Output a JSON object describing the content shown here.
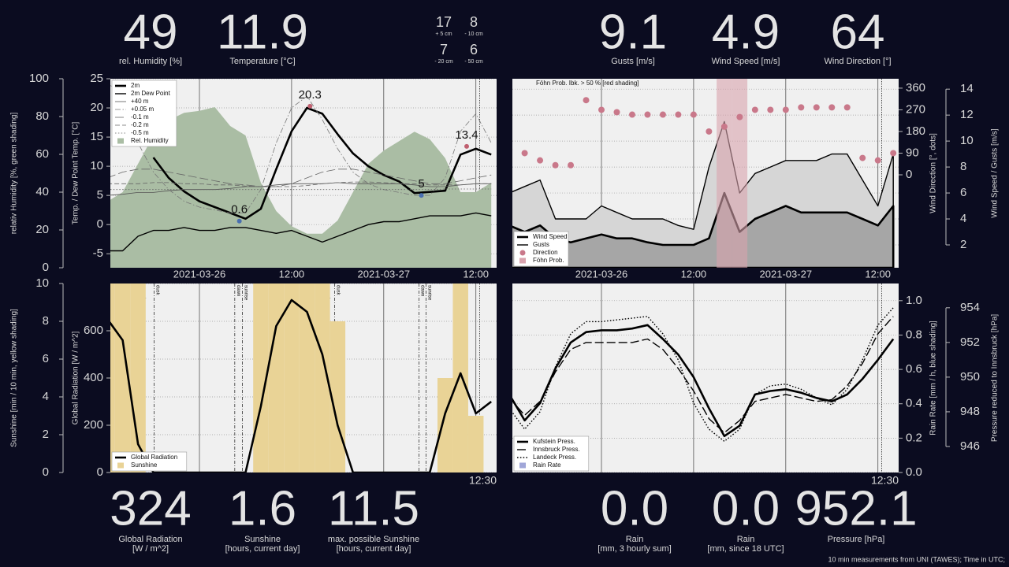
{
  "readouts_top": [
    {
      "value": 49,
      "label": [
        "rel. Humidity [%]"
      ]
    },
    {
      "value": 11.9,
      "label": [
        "Temperature [°C]"
      ]
    },
    {
      "value": 9.1,
      "label": [
        "Gusts [m/s]"
      ]
    },
    {
      "value": 4.9,
      "label": [
        "Wind Speed [m/s]"
      ]
    },
    {
      "value": 64,
      "label": [
        "Wind Direction [°]"
      ]
    }
  ],
  "soil_readouts": [
    {
      "value": 17,
      "label": "+ 5 cm"
    },
    {
      "value": 8,
      "label": "- 10 cm"
    },
    {
      "value": 7,
      "label": "- 20 cm"
    },
    {
      "value": 6,
      "label": "- 50 cm"
    }
  ],
  "readouts_bottom": [
    {
      "value": 324,
      "label": [
        "Global Radiation",
        "[W / m^2]"
      ]
    },
    {
      "value": 1.6,
      "label": [
        "Sunshine",
        "[hours, current day]"
      ]
    },
    {
      "value": 11.5,
      "label": [
        "max. possible Sunshine",
        "[hours, current day]"
      ]
    },
    {
      "value": 0,
      "value_label": "0.0",
      "label": [
        "Rain",
        "[mm, 3 hourly sum]"
      ]
    },
    {
      "value": 0,
      "value_label": "0.0",
      "label": [
        "Rain",
        "[mm, since 18 UTC]"
      ]
    },
    {
      "value": 952.1,
      "label": [
        "Pressure [hPa]"
      ]
    }
  ],
  "footnote": "10 min measurements from UNI (TAWES); Time in UTC;",
  "chart_data": [
    {
      "type": "line",
      "x": [
        -12,
        -10,
        -8,
        -6,
        -4,
        -2,
        0,
        2,
        4,
        6,
        8,
        10,
        12,
        14,
        16,
        18,
        20,
        22,
        24,
        26,
        28,
        30,
        32,
        34,
        36,
        38
      ],
      "xlim": [
        -11.6,
        38.7
      ],
      "xticks": [
        {
          "value": 0,
          "label": "2021-03-26"
        },
        {
          "value": 12,
          "label": "12:00"
        },
        {
          "value": 24,
          "label": "2021-03-27"
        },
        {
          "value": 36,
          "label": "12:00"
        }
      ],
      "xtick_labels": true,
      "now_x": 36.5,
      "ylim": [
        -7.4,
        25
      ],
      "yticks": [
        -5,
        0,
        5,
        10,
        15,
        20,
        25
      ],
      "ylabel": "Temp. / Dew Point Temp. [°C]",
      "y2lim": [
        0,
        100
      ],
      "y2ticks": [
        0,
        20,
        40,
        60,
        80,
        100
      ],
      "y2label": "relativ Humidity [%, green shading]",
      "axis_side": "left",
      "grid_axis": "y",
      "legend": "upper left",
      "series": [
        {
          "name": "2m",
          "kind": "line",
          "axis": "y",
          "color": "#000000",
          "weight": "thick",
          "dash": "solid",
          "values": [
            null,
            null,
            null,
            11.5,
            8,
            5.7,
            4,
            3,
            2,
            1,
            2.7,
            9.5,
            16,
            20,
            19,
            15.5,
            12.2,
            10,
            8.5,
            7.4,
            5.4,
            5.6,
            5.8,
            12,
            13,
            12
          ]
        },
        {
          "name": "2m Dew Point",
          "kind": "line",
          "axis": "y",
          "color": "#000000",
          "weight": "medium",
          "dash": "solid",
          "values": [
            -4.5,
            -4.5,
            -2,
            -1,
            -1,
            -0.5,
            -1,
            -1,
            -0.5,
            -0.5,
            -1,
            -1.5,
            -1,
            -2,
            -3,
            -2,
            -1,
            0,
            0.5,
            0.5,
            1,
            1.5,
            1.5,
            1.5,
            2,
            1.5
          ]
        },
        {
          "name": "+40 m",
          "kind": "line",
          "axis": "y",
          "color": "#555555",
          "weight": "thin",
          "dash": "solid",
          "values": [
            5,
            5.2,
            5.5,
            5.5,
            5.8,
            6,
            6,
            6,
            6.2,
            6.5,
            6.5,
            6.8,
            7,
            7,
            7,
            7.2,
            7,
            7,
            7,
            7,
            6.8,
            6.5,
            6.5,
            6.8,
            7,
            7
          ]
        },
        {
          "name": "+0.05 m",
          "kind": "line",
          "axis": "y",
          "color": "#777777",
          "weight": "thin",
          "dash": "dashdot",
          "values": [
            25,
            20,
            14,
            9,
            6,
            4,
            3,
            2.5,
            2,
            2,
            6,
            14,
            20,
            22,
            18,
            13,
            9,
            7,
            6,
            5.5,
            5,
            5,
            8,
            16,
            19,
            14
          ]
        },
        {
          "name": "-0.1 m",
          "kind": "line",
          "axis": "y",
          "color": "#666666",
          "weight": "thin",
          "dash": "longdash",
          "values": [
            8,
            9,
            9.5,
            9.5,
            9,
            8.5,
            8,
            7.5,
            7,
            6.8,
            6.5,
            6.5,
            7,
            8,
            9,
            9.5,
            9.5,
            9,
            8.5,
            8,
            7.5,
            7,
            7,
            7.5,
            8,
            8.5
          ]
        },
        {
          "name": "-0.2 m",
          "kind": "line",
          "axis": "y",
          "color": "#666666",
          "weight": "thin",
          "dash": "dashed",
          "values": [
            7,
            7,
            7,
            7.2,
            7.2,
            7,
            7,
            6.8,
            6.8,
            6.6,
            6.5,
            6.5,
            6.5,
            6.7,
            7,
            7.2,
            7.3,
            7.3,
            7.2,
            7,
            7,
            6.8,
            6.8,
            6.8,
            7,
            7
          ]
        },
        {
          "name": "-0.5 m",
          "kind": "line",
          "axis": "y",
          "color": "#666666",
          "weight": "thin",
          "dash": "dotted",
          "values": [
            6,
            6,
            6,
            6,
            6,
            6,
            6,
            6,
            6,
            6,
            6,
            6,
            6,
            6,
            6,
            6,
            6,
            6,
            6,
            6,
            6,
            6,
            6.1,
            6.1,
            6.1,
            6.1
          ]
        },
        {
          "name": "Rel. Humidity",
          "kind": "area",
          "axis": "y2",
          "fill": "#aabda4",
          "values": [
            35,
            40,
            55,
            70,
            78,
            82,
            83,
            85,
            75,
            70,
            45,
            30,
            22,
            18,
            18,
            25,
            40,
            55,
            62,
            67,
            72,
            68,
            58,
            40,
            40,
            45
          ]
        }
      ],
      "annotations": [
        {
          "x": 5.2,
          "y": 0.6,
          "color": "#4a6fb0"
        },
        {
          "x": 14.4,
          "y": 20.3,
          "color": "#c06070"
        },
        {
          "x": 28.9,
          "y": 5,
          "color": "#4a6fb0"
        },
        {
          "x": 34.8,
          "y": 13.4,
          "color": "#c06070"
        }
      ]
    },
    {
      "type": "line",
      "x": [
        -12,
        -10,
        -8,
        -6,
        -4,
        -2,
        0,
        2,
        4,
        6,
        8,
        10,
        12,
        14,
        16,
        18,
        20,
        22,
        24,
        26,
        28,
        30,
        32,
        34,
        36,
        38
      ],
      "xlim": [
        -11.6,
        38.7
      ],
      "xticks": [
        {
          "value": 0,
          "label": "2021-03-26"
        },
        {
          "value": 12,
          "label": "12:00"
        },
        {
          "value": 24,
          "label": "2021-03-27"
        },
        {
          "value": 36,
          "label": "12:00"
        }
      ],
      "xtick_labels": true,
      "now_x": 36.5,
      "ylim": [
        -386,
        399
      ],
      "yticks": [
        0,
        90,
        180,
        270,
        360
      ],
      "ylabel": "Wind Direction [°, dots]",
      "y2lim": [
        0.24,
        14.8
      ],
      "y2ticks": [
        2,
        4,
        6,
        8,
        10,
        12,
        14
      ],
      "y2label": "Wind Speed  / Gusts [m/s]",
      "axis_side": "right",
      "grid_axis": "y2",
      "legend": "lower left",
      "shade_threshold": 50,
      "annotation_text": "Föhn Prob. Ibk. > 50 % [red shading]",
      "series": [
        {
          "name": "Wind Speed",
          "kind": "area",
          "axis": "y2",
          "color": "#000000",
          "fill": "#a6a6a6",
          "weight": "thick",
          "dash": "solid",
          "values": [
            3.5,
            3,
            3.5,
            2.5,
            2.2,
            2.5,
            2.8,
            2.5,
            2.5,
            2.2,
            2,
            2,
            2,
            2.5,
            6,
            3,
            4,
            4.5,
            5,
            4.5,
            4.5,
            4.5,
            4.5,
            4,
            3.5,
            5
          ]
        },
        {
          "name": "Gusts",
          "kind": "area",
          "axis": "y2",
          "color": "#000000",
          "fill": "#d6d6d6",
          "weight": "medium",
          "dash": "solid",
          "values": [
            6,
            6.5,
            7,
            4,
            4,
            4,
            5,
            4.5,
            4,
            4,
            4,
            3.5,
            3.2,
            8,
            11.5,
            6,
            7.5,
            8,
            8.5,
            8.5,
            8.5,
            9,
            9,
            7,
            5,
            9
          ]
        },
        {
          "name": "Direction",
          "kind": "dots",
          "axis": "y",
          "color": "#c9788a",
          "values": [
            105,
            90,
            60,
            40,
            40,
            310,
            270,
            260,
            250,
            250,
            250,
            250,
            250,
            180,
            200,
            240,
            270,
            270,
            270,
            280,
            280,
            280,
            280,
            70,
            60,
            90
          ]
        },
        {
          "name": "Föhn Prob.",
          "kind": "shade",
          "fill": "#d9a3ae",
          "values": [
            0,
            0,
            0,
            0,
            0,
            0,
            0,
            0,
            0,
            0,
            0,
            0,
            0,
            0,
            80,
            80,
            0,
            0,
            0,
            0,
            0,
            0,
            0,
            0,
            0,
            0
          ]
        }
      ]
    },
    {
      "type": "line",
      "x": [
        -12,
        -10,
        -8,
        -6,
        -4,
        -2,
        0,
        2,
        4,
        6,
        8,
        10,
        12,
        14,
        16,
        18,
        20,
        22,
        24,
        26,
        28,
        30,
        32,
        34,
        36,
        38
      ],
      "xlim": [
        -11.6,
        38.7
      ],
      "xticks": [
        {
          "value": 0,
          "label": "2021-03-26"
        },
        {
          "value": 12,
          "label": "12:00"
        },
        {
          "value": 24,
          "label": "2021-03-27"
        },
        {
          "value": 36,
          "label": "12:00"
        }
      ],
      "xtick_labels": false,
      "now_x": 36.5,
      "now_label": "12:30",
      "ylim": [
        0,
        800
      ],
      "yticks": [
        0,
        200,
        400,
        600
      ],
      "ylabel": "Global Radiation [W / m^2]",
      "y2lim": [
        0,
        10
      ],
      "y2ticks": [
        0,
        2,
        4,
        6,
        8,
        10
      ],
      "y2label": "Sunshine [min / 10 min, yellow shading]",
      "axis_side": "left",
      "grid_axis": "y2",
      "legend": "lower left",
      "events": [
        {
          "label": "sunset",
          "x": -7.7
        },
        {
          "label": "dusk",
          "x": -5.9
        },
        {
          "label": "dawn",
          "x": 4.6
        },
        {
          "label": "sunrise",
          "x": 5.6
        },
        {
          "label": "sunset",
          "x": 16.3
        },
        {
          "label": "dusk",
          "x": 17.6
        },
        {
          "label": "dawn",
          "x": 28.6
        },
        {
          "label": "sunrise",
          "x": 29.5
        }
      ],
      "series": [
        {
          "name": "Global Radiation",
          "kind": "line",
          "axis": "y",
          "color": "#000000",
          "weight": "thick",
          "dash": "solid",
          "values": [
            650,
            560,
            120,
            0,
            0,
            0,
            0,
            0,
            0,
            0,
            280,
            620,
            730,
            680,
            500,
            200,
            0,
            0,
            0,
            0,
            0,
            0,
            250,
            420,
            250,
            300
          ]
        },
        {
          "name": "Sunshine",
          "kind": "bars",
          "axis": "y2",
          "fill": "#e9d396",
          "values": [
            10,
            10,
            10,
            0,
            0,
            0,
            0,
            0,
            0,
            0,
            10,
            10,
            10,
            10,
            10,
            8,
            0,
            0,
            0,
            0,
            0,
            0,
            5,
            10,
            3,
            0
          ]
        }
      ]
    },
    {
      "type": "line",
      "x": [
        -12,
        -10,
        -8,
        -6,
        -4,
        -2,
        0,
        2,
        4,
        6,
        8,
        10,
        12,
        14,
        16,
        18,
        20,
        22,
        24,
        26,
        28,
        30,
        32,
        34,
        36,
        38
      ],
      "xlim": [
        -11.6,
        38.7
      ],
      "xticks": [
        {
          "value": 0,
          "label": "2021-03-26"
        },
        {
          "value": 12,
          "label": "12:00"
        },
        {
          "value": 24,
          "label": "2021-03-27"
        },
        {
          "value": 36,
          "label": "12:00"
        }
      ],
      "xtick_labels": false,
      "now_x": 36.5,
      "now_label": "12:30",
      "ylim": [
        0,
        1.1
      ],
      "yticks": [
        {
          "value": 0,
          "label": "0.0"
        },
        0.2,
        0.4,
        0.6,
        0.8,
        {
          "value": 1,
          "label": "1.0"
        }
      ],
      "ylabel": "Rain Rate [mm / h, blue shading]",
      "y2lim": [
        944.5,
        955.4
      ],
      "y2ticks": [
        946,
        948,
        950,
        952,
        954
      ],
      "y2label": "Pressure reduced to Innsbruck [hPa]",
      "axis_side": "right",
      "grid_axis": "y",
      "legend": "lower left",
      "series": [
        {
          "name": "Kufstein Press.",
          "kind": "line",
          "axis": "y2",
          "color": "#000000",
          "weight": "thick",
          "dash": "solid",
          "values": [
            949.0,
            947.5,
            948.5,
            950.5,
            952,
            952.6,
            952.7,
            952.7,
            952.8,
            953,
            952.2,
            951.3,
            950,
            948.2,
            946.6,
            947.2,
            949,
            949.2,
            949.3,
            949.1,
            948.8,
            948.6,
            949,
            949.9,
            951,
            952.2
          ]
        },
        {
          "name": "Innsbruck Press.",
          "kind": "line",
          "axis": "y2",
          "color": "#000000",
          "weight": "medium",
          "dash": "longdash",
          "values": [
            948.8,
            947.8,
            948.6,
            950.3,
            951.6,
            952,
            952,
            952,
            952,
            952.2,
            951.6,
            950.5,
            949.2,
            947.6,
            946.8,
            947.5,
            948.6,
            948.8,
            949,
            948.8,
            948.6,
            948.7,
            949.5,
            950.8,
            952.5,
            953.5
          ]
        },
        {
          "name": "Landeck Press.",
          "kind": "line",
          "axis": "y2",
          "color": "#000000",
          "weight": "medium",
          "dash": "dotted",
          "values": [
            948.2,
            947,
            948,
            950.6,
            952.5,
            953.2,
            953.2,
            953.3,
            953.4,
            953.5,
            952.5,
            951,
            948.5,
            947,
            946.3,
            947,
            949,
            949.5,
            949.6,
            949.3,
            948.8,
            948.4,
            949.3,
            951,
            953,
            954
          ]
        },
        {
          "name": "Rain Rate",
          "kind": "bars",
          "axis": "y",
          "fill": "#a0a6d8",
          "values": [
            0,
            0,
            0,
            0,
            0,
            0,
            0,
            0,
            0,
            0,
            0,
            0,
            0,
            0,
            0,
            0,
            0,
            0,
            0,
            0,
            0,
            0,
            0,
            0,
            0,
            0
          ]
        }
      ]
    }
  ]
}
